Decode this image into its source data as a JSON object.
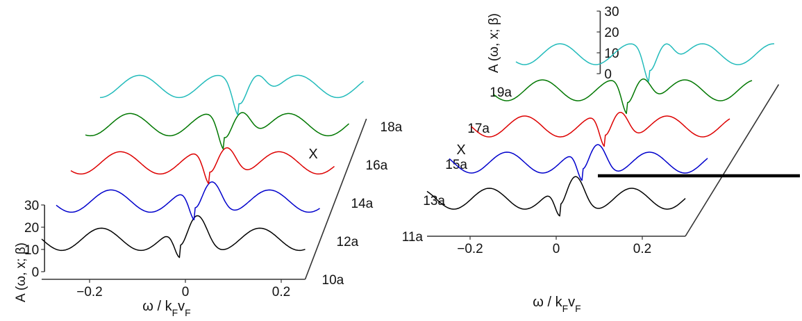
{
  "chart_data": [
    {
      "type": "line",
      "title": "",
      "xlabel": "ω / kFvF",
      "ylabel": "A (ω, x; β)",
      "depth_label": "X",
      "x_ticks": [
        "−0.2",
        "0",
        "0.2"
      ],
      "y_ticks": [
        "0",
        "10",
        "20",
        "30"
      ],
      "depth_ticks": [
        "10a",
        "12a",
        "14a",
        "16a",
        "18a"
      ],
      "series": [
        {
          "color": "#000000",
          "depth": 0,
          "dip": -0.01
        },
        {
          "color": "#0000cc",
          "depth": 1,
          "dip": -0.01
        },
        {
          "color": "#dd0000",
          "depth": 2,
          "dip": -0.01
        },
        {
          "color": "#007700",
          "depth": 3,
          "dip": -0.01
        },
        {
          "color": "#22bbbb",
          "depth": 4,
          "dip": -0.01
        }
      ]
    },
    {
      "type": "line",
      "title": "",
      "xlabel": "ω / kFvF",
      "ylabel": "A (ω, x; β)",
      "depth_label": "X",
      "x_ticks": [
        "−0.2",
        "0",
        "0.2"
      ],
      "y_ticks": [
        "0",
        "10",
        "20",
        "30"
      ],
      "depth_ticks": [
        "11a",
        "13a",
        "15a",
        "17a",
        "19a"
      ],
      "series": [
        {
          "color": "#000000",
          "depth": 0,
          "dip": 0.01
        },
        {
          "color": "#0000cc",
          "depth": 1,
          "dip": 0.01
        },
        {
          "color": "#dd0000",
          "depth": 2,
          "dip": 0.01
        },
        {
          "color": "#007700",
          "depth": 3,
          "dip": 0.01
        },
        {
          "color": "#22bbbb",
          "depth": 4,
          "dip": 0.01
        }
      ]
    }
  ]
}
